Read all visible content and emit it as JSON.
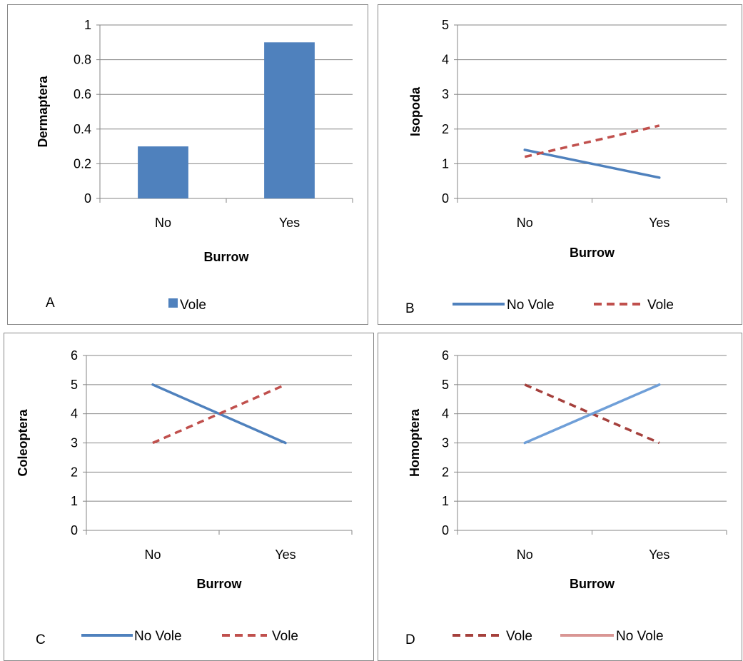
{
  "colors": {
    "blue": "#4f81bd",
    "red": "#c0504d",
    "dark_red": "#a5403c",
    "light_blue": "#6f9fd8",
    "pink": "#d99694",
    "gridline": "#868686",
    "border": "#888888"
  },
  "chart_data": [
    {
      "type": "bar",
      "panel_label": "A",
      "categories": [
        "No",
        "Yes"
      ],
      "xlabel": "Burrow",
      "ylabel": "Dermaptera",
      "ylim": [
        0,
        1
      ],
      "yticks": [
        "0",
        "0.2",
        "0.4",
        "0.6",
        "0.8",
        "1"
      ],
      "grid": true,
      "legend_position": "bottom",
      "series": [
        {
          "name": "Vole",
          "values": [
            0.3,
            0.9
          ],
          "color": "#4f81bd",
          "style": "bar"
        }
      ]
    },
    {
      "type": "line",
      "panel_label": "B",
      "categories": [
        "No",
        "Yes"
      ],
      "xlabel": "Burrow",
      "ylabel": "Isopoda",
      "ylim": [
        0,
        5
      ],
      "yticks": [
        "0",
        "1",
        "2",
        "3",
        "4",
        "5"
      ],
      "grid": true,
      "legend_position": "bottom",
      "series": [
        {
          "name": "No Vole",
          "values": [
            1.4,
            0.6
          ],
          "color": "#4f81bd",
          "style": "solid"
        },
        {
          "name": "Vole",
          "values": [
            1.2,
            2.1
          ],
          "color": "#c0504d",
          "style": "dashed"
        }
      ]
    },
    {
      "type": "line",
      "panel_label": "C",
      "categories": [
        "No",
        "Yes"
      ],
      "xlabel": "Burrow",
      "ylabel": "Coleoptera",
      "ylim": [
        0,
        6
      ],
      "yticks": [
        "0",
        "1",
        "2",
        "3",
        "4",
        "5",
        "6"
      ],
      "grid": true,
      "legend_position": "bottom",
      "series": [
        {
          "name": "No Vole",
          "values": [
            5,
            3
          ],
          "color": "#4f81bd",
          "style": "solid"
        },
        {
          "name": "Vole",
          "values": [
            3,
            5
          ],
          "color": "#c0504d",
          "style": "dashed"
        }
      ]
    },
    {
      "type": "line",
      "panel_label": "D",
      "categories": [
        "No",
        "Yes"
      ],
      "xlabel": "Burrow",
      "ylabel": "Homoptera",
      "ylim": [
        0,
        6
      ],
      "yticks": [
        "0",
        "1",
        "2",
        "3",
        "4",
        "5",
        "6"
      ],
      "grid": true,
      "legend_position": "bottom",
      "series": [
        {
          "name": "Vole",
          "values": [
            5,
            3
          ],
          "color": "#a5403c",
          "style": "dashed"
        },
        {
          "name": "No Vole",
          "values": [
            3,
            5
          ],
          "color": "#6f9fd8",
          "legend_color": "#d99694",
          "style": "solid"
        }
      ]
    }
  ]
}
